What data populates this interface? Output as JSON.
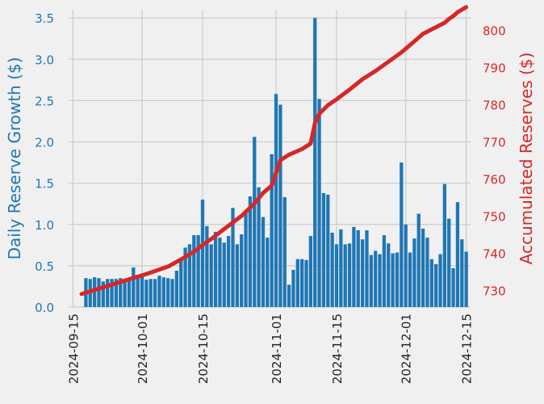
{
  "chart_data": {
    "type": "bar+line",
    "title": "",
    "xlabel": "",
    "ylabel_left": "Daily Reserve Growth ($)",
    "ylabel_right": "Accumulated Reserves ($)",
    "grid": true,
    "colors": {
      "bars": "#1f77b4",
      "line": "#d62728",
      "left_axis": "#1f77b4",
      "right_axis": "#d62728",
      "background": "#f0f0f0",
      "grid": "#cbcbcb"
    },
    "x_range": [
      "2024-09-14",
      "2024-12-16"
    ],
    "ylim_left": [
      0,
      3.6
    ],
    "ylim_right": [
      725.5,
      805.5
    ],
    "x_ticks": [
      "2024-09-15",
      "2024-10-01",
      "2024-10-15",
      "2024-11-01",
      "2024-11-15",
      "2024-12-01",
      "2024-12-15"
    ],
    "y_ticks_left": [
      "0.0",
      "0.5",
      "1.0",
      "1.5",
      "2.0",
      "2.5",
      "3.0",
      "3.5"
    ],
    "y_ticks_right": [
      "730",
      "740",
      "750",
      "760",
      "770",
      "780",
      "790",
      "800"
    ],
    "bar_start_date": "2024-09-18",
    "series": [
      {
        "name": "Daily Reserve Growth",
        "kind": "bar",
        "axis": "left",
        "values": [
          0.35,
          0.34,
          0.36,
          0.35,
          0.31,
          0.34,
          0.34,
          0.34,
          0.35,
          0.33,
          0.35,
          0.48,
          0.37,
          0.38,
          0.33,
          0.34,
          0.34,
          0.38,
          0.36,
          0.35,
          0.34,
          0.44,
          0.58,
          0.72,
          0.76,
          0.87,
          0.87,
          1.3,
          0.98,
          0.76,
          0.91,
          0.84,
          0.78,
          0.86,
          1.2,
          0.76,
          0.88,
          1.15,
          1.34,
          2.06,
          1.45,
          1.09,
          0.84,
          1.85,
          2.58,
          2.45,
          1.33,
          0.27,
          0.45,
          0.58,
          0.58,
          0.57,
          0.86,
          3.5,
          2.52,
          1.38,
          1.36,
          0.9,
          0.76,
          0.94,
          0.76,
          0.77,
          0.97,
          0.93,
          0.82,
          0.93,
          0.63,
          0.68,
          0.64,
          0.87,
          0.77,
          0.65,
          0.66,
          1.75,
          1.0,
          0.66,
          0.83,
          1.13,
          0.95,
          0.84,
          0.58,
          0.52,
          0.64,
          1.49,
          1.07,
          0.47,
          1.27,
          0.82,
          0.67
        ]
      },
      {
        "name": "Accumulated Reserves",
        "kind": "line",
        "axis": "right",
        "x": [
          "2024-09-17",
          "2024-09-22",
          "2024-09-27",
          "2024-10-02",
          "2024-10-07",
          "2024-10-10",
          "2024-10-13",
          "2024-10-15",
          "2024-10-17",
          "2024-10-20",
          "2024-10-24",
          "2024-10-27",
          "2024-10-29",
          "2024-10-31",
          "2024-11-02",
          "2024-11-04",
          "2024-11-07",
          "2024-11-09",
          "2024-11-10",
          "2024-11-11",
          "2024-11-13",
          "2024-11-15",
          "2024-11-18",
          "2024-11-21",
          "2024-11-24",
          "2024-11-27",
          "2024-11-30",
          "2024-12-01",
          "2024-12-03",
          "2024-12-05",
          "2024-12-07",
          "2024-12-10",
          "2024-12-11",
          "2024-12-12",
          "2024-12-13",
          "2024-12-14",
          "2024-12-15"
        ],
        "values": [
          729.0,
          730.8,
          732.6,
          734.4,
          736.4,
          738.3,
          740.4,
          742.2,
          743.8,
          746.5,
          750.0,
          753.4,
          756.2,
          758.2,
          765.0,
          766.5,
          768.0,
          769.5,
          775.0,
          777.5,
          779.8,
          781.4,
          784.0,
          786.8,
          789.0,
          791.5,
          794.0,
          795.0,
          797.0,
          799.0,
          800.2,
          802.0,
          803.0,
          803.8,
          804.8,
          805.5,
          806.2
        ]
      }
    ]
  }
}
